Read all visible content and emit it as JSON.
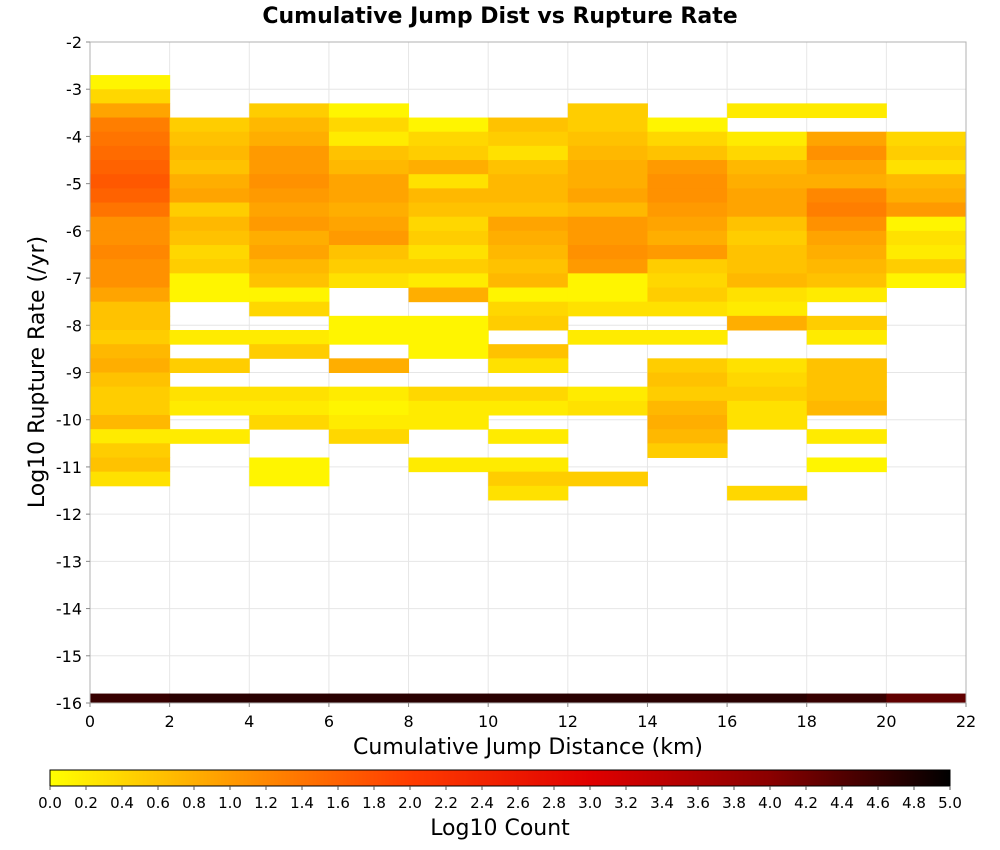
{
  "chart_data": {
    "type": "heatmap",
    "title": "Cumulative Jump Dist vs Rupture Rate",
    "xlabel": "Cumulative Jump Distance (km)",
    "ylabel": "Log10 Rupture Rate (/yr)",
    "xlim": [
      0,
      22
    ],
    "ylim": [
      -16,
      -2
    ],
    "x_ticks": [
      "0",
      "2",
      "4",
      "6",
      "8",
      "10",
      "12",
      "14",
      "16",
      "18",
      "20",
      "22"
    ],
    "y_ticks": [
      "-2",
      "-3",
      "-4",
      "-5",
      "-6",
      "-7",
      "-8",
      "-9",
      "-10",
      "-11",
      "-12",
      "-13",
      "-14",
      "-15",
      "-16"
    ],
    "x_bin_width": 2,
    "y_bin_height": 0.3,
    "grid": true,
    "colorbar": {
      "label": "Log10 Count",
      "range": [
        0.0,
        5.0
      ],
      "ticks": [
        "0.0",
        "0.2",
        "0.4",
        "0.6",
        "0.8",
        "1.0",
        "1.2",
        "1.4",
        "1.6",
        "1.8",
        "2.0",
        "2.2",
        "2.4",
        "2.6",
        "2.8",
        "3.0",
        "3.2",
        "3.4",
        "3.6",
        "3.8",
        "4.0",
        "4.2",
        "4.4",
        "4.6",
        "4.8",
        "5.0"
      ],
      "colors": [
        "#ffff00",
        "#ff9a00",
        "#ff3c00",
        "#e00000",
        "#8a0000",
        "#000000"
      ]
    },
    "columns": [
      {
        "x": 1,
        "cells": [
          [
            -2.85,
            0.1
          ],
          [
            -3.15,
            0.4
          ],
          [
            -3.45,
            0.9
          ],
          [
            -3.75,
            1.3
          ],
          [
            -4.05,
            1.4
          ],
          [
            -4.35,
            1.5
          ],
          [
            -4.65,
            1.6
          ],
          [
            -4.95,
            1.7
          ],
          [
            -5.25,
            1.6
          ],
          [
            -5.55,
            1.4
          ],
          [
            -5.85,
            1.1
          ],
          [
            -6.15,
            1.1
          ],
          [
            -6.45,
            1.2
          ],
          [
            -6.75,
            1.1
          ],
          [
            -7.05,
            1.1
          ],
          [
            -7.35,
            0.9
          ],
          [
            -7.65,
            0.6
          ],
          [
            -7.95,
            0.6
          ],
          [
            -8.25,
            0.5
          ],
          [
            -8.55,
            0.7
          ],
          [
            -8.85,
            0.8
          ],
          [
            -9.15,
            0.6
          ],
          [
            -9.45,
            0.5
          ],
          [
            -9.75,
            0.5
          ],
          [
            -10.05,
            0.7
          ],
          [
            -10.35,
            0.2
          ],
          [
            -10.65,
            0.5
          ],
          [
            -10.95,
            0.6
          ],
          [
            -11.25,
            0.3
          ]
        ]
      },
      {
        "x": 3,
        "cells": [
          [
            -3.75,
            0.5
          ],
          [
            -4.05,
            0.6
          ],
          [
            -4.35,
            0.7
          ],
          [
            -4.65,
            0.6
          ],
          [
            -4.95,
            0.8
          ],
          [
            -5.25,
            0.9
          ],
          [
            -5.55,
            0.5
          ],
          [
            -5.85,
            0.7
          ],
          [
            -6.15,
            0.6
          ],
          [
            -6.45,
            0.4
          ],
          [
            -6.75,
            0.5
          ],
          [
            -7.05,
            0.1
          ],
          [
            -7.35,
            0.1
          ],
          [
            -8.25,
            0.2
          ],
          [
            -8.85,
            0.5
          ],
          [
            -9.45,
            0.3
          ],
          [
            -9.75,
            0.2
          ],
          [
            -10.35,
            0.2
          ]
        ]
      },
      {
        "x": 5,
        "cells": [
          [
            -3.45,
            0.5
          ],
          [
            -3.75,
            0.7
          ],
          [
            -4.05,
            0.8
          ],
          [
            -4.35,
            1.0
          ],
          [
            -4.65,
            1.0
          ],
          [
            -4.95,
            1.1
          ],
          [
            -5.25,
            1.0
          ],
          [
            -5.55,
            0.9
          ],
          [
            -5.85,
            1.0
          ],
          [
            -6.15,
            0.8
          ],
          [
            -6.45,
            0.9
          ],
          [
            -6.75,
            0.7
          ],
          [
            -7.05,
            0.6
          ],
          [
            -7.35,
            0.1
          ],
          [
            -7.65,
            0.4
          ],
          [
            -8.25,
            0.2
          ],
          [
            -8.55,
            0.5
          ],
          [
            -9.45,
            0.3
          ],
          [
            -9.75,
            0.2
          ],
          [
            -10.05,
            0.4
          ],
          [
            -10.95,
            0.1
          ],
          [
            -11.25,
            0.1
          ]
        ]
      },
      {
        "x": 7,
        "cells": [
          [
            -3.45,
            0.1
          ],
          [
            -3.75,
            0.4
          ],
          [
            -4.05,
            0.2
          ],
          [
            -4.35,
            0.6
          ],
          [
            -4.65,
            0.7
          ],
          [
            -4.95,
            0.9
          ],
          [
            -5.25,
            0.9
          ],
          [
            -5.55,
            0.8
          ],
          [
            -5.85,
            0.9
          ],
          [
            -6.15,
            1.0
          ],
          [
            -6.45,
            0.6
          ],
          [
            -6.75,
            0.5
          ],
          [
            -7.05,
            0.3
          ],
          [
            -7.95,
            0.1
          ],
          [
            -8.25,
            0.1
          ],
          [
            -8.85,
            0.8
          ],
          [
            -9.45,
            0.2
          ],
          [
            -9.75,
            0.1
          ],
          [
            -10.05,
            0.2
          ],
          [
            -10.35,
            0.4
          ]
        ]
      },
      {
        "x": 9,
        "cells": [
          [
            -3.75,
            0.1
          ],
          [
            -4.05,
            0.4
          ],
          [
            -4.35,
            0.5
          ],
          [
            -4.65,
            0.8
          ],
          [
            -4.95,
            0.3
          ],
          [
            -5.25,
            0.7
          ],
          [
            -5.55,
            0.6
          ],
          [
            -5.85,
            0.4
          ],
          [
            -6.15,
            0.5
          ],
          [
            -6.45,
            0.3
          ],
          [
            -6.75,
            0.5
          ],
          [
            -7.05,
            0.2
          ],
          [
            -7.35,
            0.8
          ],
          [
            -7.95,
            0.1
          ],
          [
            -8.25,
            0.1
          ],
          [
            -8.55,
            0.1
          ],
          [
            -9.45,
            0.4
          ],
          [
            -9.75,
            0.2
          ],
          [
            -10.05,
            0.2
          ],
          [
            -10.95,
            0.2
          ]
        ]
      },
      {
        "x": 11,
        "cells": [
          [
            -3.75,
            0.6
          ],
          [
            -4.05,
            0.5
          ],
          [
            -4.35,
            0.3
          ],
          [
            -4.65,
            0.6
          ],
          [
            -4.95,
            0.7
          ],
          [
            -5.25,
            0.7
          ],
          [
            -5.55,
            0.6
          ],
          [
            -5.85,
            0.9
          ],
          [
            -6.15,
            0.8
          ],
          [
            -6.45,
            0.7
          ],
          [
            -6.75,
            0.6
          ],
          [
            -7.05,
            0.7
          ],
          [
            -7.35,
            0.1
          ],
          [
            -7.65,
            0.4
          ],
          [
            -7.95,
            0.5
          ],
          [
            -8.55,
            0.6
          ],
          [
            -8.85,
            0.3
          ],
          [
            -9.45,
            0.4
          ],
          [
            -9.75,
            0.2
          ],
          [
            -10.35,
            0.2
          ],
          [
            -10.95,
            0.2
          ],
          [
            -11.25,
            0.5
          ],
          [
            -11.55,
            0.3
          ]
        ]
      },
      {
        "x": 13,
        "cells": [
          [
            -3.45,
            0.5
          ],
          [
            -3.75,
            0.5
          ],
          [
            -4.05,
            0.6
          ],
          [
            -4.35,
            0.7
          ],
          [
            -4.65,
            0.8
          ],
          [
            -4.95,
            0.8
          ],
          [
            -5.25,
            0.9
          ],
          [
            -5.55,
            0.7
          ],
          [
            -5.85,
            1.0
          ],
          [
            -6.15,
            1.0
          ],
          [
            -6.45,
            1.1
          ],
          [
            -6.75,
            1.0
          ],
          [
            -7.05,
            0.1
          ],
          [
            -7.35,
            0.1
          ],
          [
            -7.65,
            0.3
          ],
          [
            -8.25,
            0.2
          ],
          [
            -9.45,
            0.2
          ],
          [
            -9.75,
            0.3
          ],
          [
            -11.25,
            0.5
          ]
        ]
      },
      {
        "x": 15,
        "cells": [
          [
            -3.75,
            0.1
          ],
          [
            -4.05,
            0.4
          ],
          [
            -4.35,
            0.6
          ],
          [
            -4.65,
            1.0
          ],
          [
            -4.95,
            1.1
          ],
          [
            -5.25,
            1.1
          ],
          [
            -5.55,
            1.0
          ],
          [
            -5.85,
            0.9
          ],
          [
            -6.15,
            0.8
          ],
          [
            -6.45,
            1.0
          ],
          [
            -6.75,
            0.5
          ],
          [
            -7.05,
            0.4
          ],
          [
            -7.35,
            0.5
          ],
          [
            -7.65,
            0.3
          ],
          [
            -8.25,
            0.2
          ],
          [
            -8.85,
            0.5
          ],
          [
            -9.15,
            0.6
          ],
          [
            -9.45,
            0.5
          ],
          [
            -9.75,
            0.7
          ],
          [
            -10.05,
            0.8
          ],
          [
            -10.35,
            0.7
          ],
          [
            -10.65,
            0.5
          ]
        ]
      },
      {
        "x": 17,
        "cells": [
          [
            -3.45,
            0.2
          ],
          [
            -4.05,
            0.2
          ],
          [
            -4.35,
            0.4
          ],
          [
            -4.65,
            0.7
          ],
          [
            -4.95,
            0.8
          ],
          [
            -5.25,
            0.9
          ],
          [
            -5.55,
            0.9
          ],
          [
            -5.85,
            0.6
          ],
          [
            -6.15,
            0.5
          ],
          [
            -6.45,
            0.6
          ],
          [
            -6.75,
            0.6
          ],
          [
            -7.05,
            0.7
          ],
          [
            -7.35,
            0.3
          ],
          [
            -7.65,
            0.2
          ],
          [
            -7.95,
            0.8
          ],
          [
            -8.85,
            0.3
          ],
          [
            -9.15,
            0.4
          ],
          [
            -9.45,
            0.5
          ],
          [
            -9.75,
            0.3
          ],
          [
            -10.05,
            0.3
          ],
          [
            -11.55,
            0.4
          ]
        ]
      },
      {
        "x": 19,
        "cells": [
          [
            -3.45,
            0.2
          ],
          [
            -4.05,
            0.9
          ],
          [
            -4.35,
            1.1
          ],
          [
            -4.65,
            0.9
          ],
          [
            -4.95,
            0.8
          ],
          [
            -5.25,
            1.2
          ],
          [
            -5.55,
            1.3
          ],
          [
            -5.85,
            1.1
          ],
          [
            -6.15,
            0.9
          ],
          [
            -6.45,
            0.8
          ],
          [
            -6.75,
            0.7
          ],
          [
            -7.05,
            0.6
          ],
          [
            -7.35,
            0.2
          ],
          [
            -7.95,
            0.5
          ],
          [
            -8.25,
            0.2
          ],
          [
            -8.85,
            0.6
          ],
          [
            -9.15,
            0.6
          ],
          [
            -9.45,
            0.6
          ],
          [
            -9.75,
            0.7
          ],
          [
            -10.35,
            0.2
          ],
          [
            -10.95,
            0.1
          ]
        ]
      },
      {
        "x": 21,
        "cells": [
          [
            -4.05,
            0.4
          ],
          [
            -4.35,
            0.5
          ],
          [
            -4.65,
            0.3
          ],
          [
            -4.95,
            0.7
          ],
          [
            -5.25,
            0.8
          ],
          [
            -5.55,
            1.0
          ],
          [
            -5.85,
            0.1
          ],
          [
            -6.15,
            0.3
          ],
          [
            -6.45,
            0.2
          ],
          [
            -6.75,
            0.5
          ],
          [
            -7.05,
            0.1
          ]
        ]
      }
    ],
    "bottom_row": {
      "y": -15.9,
      "height": 0.2,
      "cells": [
        [
          1,
          4.6
        ],
        [
          3,
          4.7
        ],
        [
          5,
          4.7
        ],
        [
          7,
          4.7
        ],
        [
          9,
          4.7
        ],
        [
          11,
          4.7
        ],
        [
          13,
          4.7
        ],
        [
          15,
          4.7
        ],
        [
          17,
          4.7
        ],
        [
          19,
          4.6
        ],
        [
          21,
          4.3
        ]
      ]
    }
  }
}
